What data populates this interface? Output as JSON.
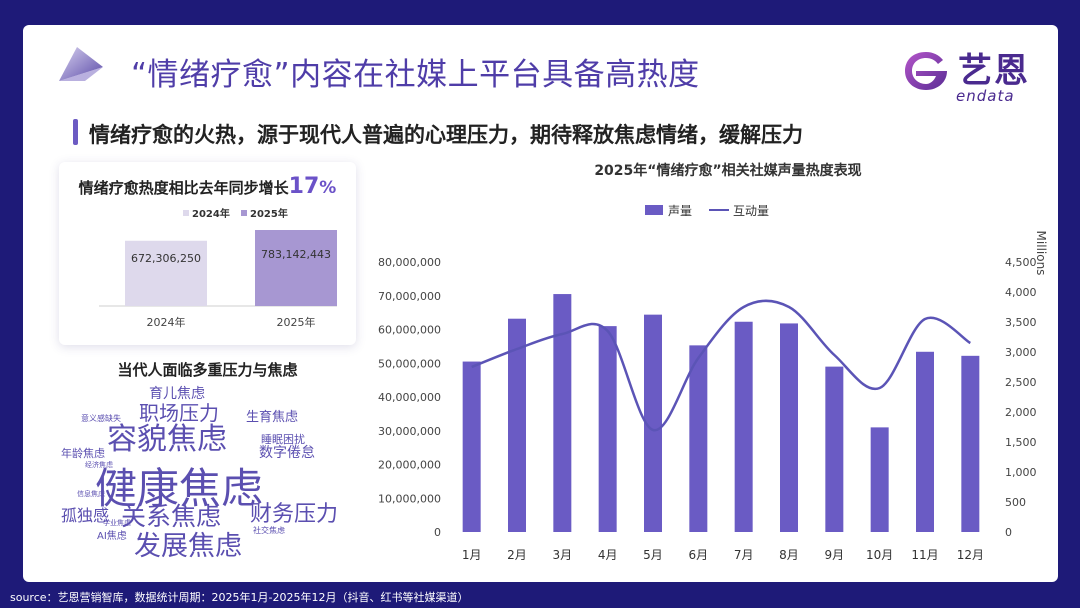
{
  "title": "“情绪疗愈”内容在社媒上平台具备高热度",
  "logo": {
    "cn": "艺恩",
    "en": "endata"
  },
  "subtitle": "情绪疗愈的火热，源于现代人普遍的心理压力，期待释放焦虑情绪，缓解压力",
  "yoy_card": {
    "title_prefix": "情绪疗愈热度相比去年同步增长",
    "growth_number": "17",
    "growth_unit": "%",
    "chart_data": {
      "type": "bar",
      "categories": [
        "2024年",
        "2025年"
      ],
      "series": [
        {
          "name": "2024年",
          "values": [
            672306250,
            null
          ],
          "label": "672,306,250",
          "color": "#ded9ec"
        },
        {
          "name": "2025年",
          "values": [
            null,
            783142443
          ],
          "label": "783,142,443",
          "color": "#a797d2"
        }
      ],
      "legend_position": "top"
    }
  },
  "wordcloud": {
    "title": "当代人面临多重压力与焦虑",
    "words": [
      {
        "text": "育儿焦虑",
        "weight": 3
      },
      {
        "text": "职场压力",
        "weight": 4
      },
      {
        "text": "意义感缺失",
        "weight": 1
      },
      {
        "text": "生育焦虑",
        "weight": 2
      },
      {
        "text": "容貌焦虑",
        "weight": 6
      },
      {
        "text": "睡眠困扰",
        "weight": 2
      },
      {
        "text": "年龄焦虑",
        "weight": 2
      },
      {
        "text": "数字倦怠",
        "weight": 3
      },
      {
        "text": "经济焦虑",
        "weight": 1
      },
      {
        "text": "健康焦虑",
        "weight": 8
      },
      {
        "text": "信息焦虑",
        "weight": 1
      },
      {
        "text": "孤独感",
        "weight": 3
      },
      {
        "text": "关系焦虑",
        "weight": 5
      },
      {
        "text": "财务压力",
        "weight": 4
      },
      {
        "text": "学业焦虑",
        "weight": 1
      },
      {
        "text": "AI焦虑",
        "weight": 2
      },
      {
        "text": "社交焦虑",
        "weight": 1
      },
      {
        "text": "发展焦虑",
        "weight": 5
      }
    ]
  },
  "main_chart": {
    "title": "2025年“情绪疗愈”相关社媒声量热度表现",
    "chart_data": {
      "type": "bar",
      "categories": [
        "1月",
        "2月",
        "3月",
        "4月",
        "5月",
        "6月",
        "7月",
        "8月",
        "9月",
        "10月",
        "11月",
        "12月"
      ],
      "series": [
        {
          "name": "声量",
          "type": "bar",
          "axis": "left",
          "color": "#6a5bc4",
          "values": [
            50500000,
            63200000,
            70500000,
            61000000,
            64400000,
            55300000,
            62300000,
            61800000,
            49000000,
            31000000,
            53400000,
            52200000
          ]
        },
        {
          "name": "互动量",
          "type": "line",
          "axis": "right",
          "color": "#5b54b6",
          "values": [
            2750,
            3050,
            3300,
            3350,
            1700,
            2900,
            3750,
            3750,
            2950,
            2400,
            3550,
            3150
          ]
        }
      ],
      "y_left": {
        "min": 0,
        "max": 80000000,
        "ticks": [
          "0",
          "10,000,000",
          "20,000,000",
          "30,000,000",
          "40,000,000",
          "50,000,000",
          "60,000,000",
          "70,000,000",
          "80,000,000"
        ]
      },
      "y_right": {
        "min": 0,
        "max": 4500,
        "ylabel": "Millions",
        "ticks": [
          "0",
          "500",
          "1,000",
          "1,500",
          "2,000",
          "2,500",
          "3,000",
          "3,500",
          "4,000",
          "4,500"
        ]
      },
      "legend_position": "top",
      "grid": false
    }
  },
  "source": "source：艺恩营销智库，数据统计周期：2025年1月-2025年12月（抖音、红书等社媒渠道）"
}
